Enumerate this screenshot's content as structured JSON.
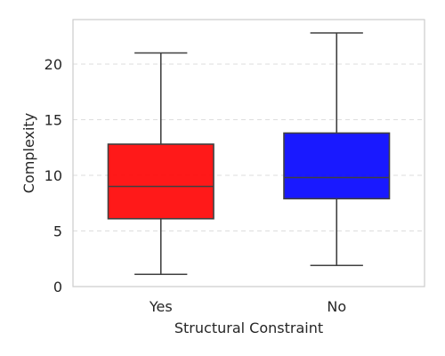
{
  "chart_data": {
    "type": "box",
    "xlabel": "Structural Constraint",
    "ylabel": "Complexity",
    "ylim": [
      0,
      24
    ],
    "yticks": [
      0,
      5,
      10,
      15,
      20
    ],
    "grid": "y-dashed",
    "categories": [
      "Yes",
      "No"
    ],
    "boxes": [
      {
        "category": "Yes",
        "whisker_low": 1.1,
        "q1": 6.1,
        "median": 9.0,
        "q3": 12.8,
        "whisker_high": 21.0,
        "color": "#ff0000"
      },
      {
        "category": "No",
        "whisker_low": 1.9,
        "q1": 7.9,
        "median": 9.8,
        "q3": 13.8,
        "whisker_high": 22.8,
        "color": "#0000ff"
      }
    ]
  },
  "colors": {
    "frame": "#cccccc",
    "grid": "#dddddd",
    "lines": "#404040",
    "text": "#262626"
  }
}
